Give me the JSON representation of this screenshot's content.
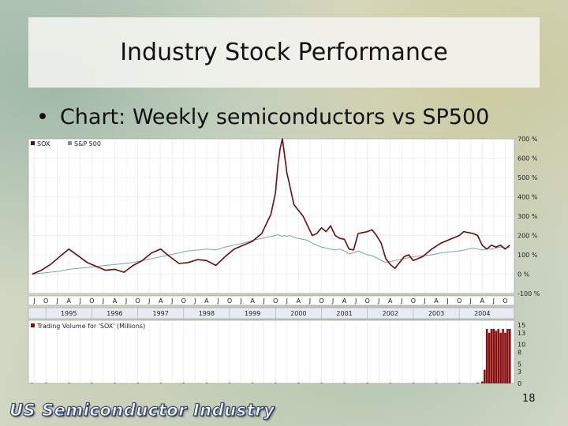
{
  "slide": {
    "title": "Industry Stock Performance",
    "bullet": "Chart: Weekly semiconductors vs SP500",
    "page_number": "18",
    "footer_brand": "US Semiconductor Industry"
  },
  "colors": {
    "sox": "#6b0a0a",
    "sp500": "#6f9aa0",
    "volume": "#8a1010",
    "grid": "#c8c8c8"
  },
  "chart_data": [
    {
      "type": "line",
      "title": "",
      "legend": [
        "SOX",
        "S&P 500"
      ],
      "legend_position": "top-left",
      "y_axis_side": "right",
      "y_ticks": [
        "700 %",
        "600 %",
        "500 %",
        "400 %",
        "300 %",
        "200 %",
        "100 %",
        "0 %",
        "-100 %"
      ],
      "ylim": [
        -100,
        700
      ],
      "grid": true,
      "month_ticks": [
        "J",
        "O",
        "J",
        "A",
        "J",
        "O",
        "J",
        "A",
        "J",
        "O",
        "J",
        "A",
        "J",
        "O",
        "J",
        "A",
        "J",
        "O",
        "J",
        "A",
        "J",
        "O",
        "J",
        "A",
        "J",
        "O",
        "J",
        "A",
        "J",
        "O",
        "J",
        "A",
        "J",
        "O",
        "J",
        "A",
        "J",
        "O",
        "J",
        "A",
        "J",
        "O",
        "J"
      ],
      "year_labels": [
        "1995",
        "1996",
        "1997",
        "1998",
        "1999",
        "2000",
        "2001",
        "2002",
        "2003",
        "2004"
      ],
      "x": [
        1994.7,
        1994.9,
        1995.1,
        1995.3,
        1995.5,
        1995.7,
        1995.9,
        1996.1,
        1996.3,
        1996.5,
        1996.7,
        1996.9,
        1997.1,
        1997.3,
        1997.5,
        1997.7,
        1997.9,
        1998.1,
        1998.3,
        1998.5,
        1998.7,
        1998.9,
        1999.1,
        1999.3,
        1999.5,
        1999.7,
        1999.9,
        2000.0,
        2000.05,
        2000.1,
        2000.15,
        2000.2,
        2000.25,
        2000.3,
        2000.4,
        2000.5,
        2000.6,
        2000.7,
        2000.8,
        2000.9,
        2001.0,
        2001.1,
        2001.2,
        2001.3,
        2001.4,
        2001.5,
        2001.6,
        2001.7,
        2001.8,
        2001.9,
        2002.0,
        2002.1,
        2002.2,
        2002.3,
        2002.4,
        2002.5,
        2002.6,
        2002.7,
        2002.8,
        2002.9,
        2003.0,
        2003.2,
        2003.4,
        2003.6,
        2003.8,
        2004.0,
        2004.1,
        2004.2,
        2004.3,
        2004.4,
        2004.5,
        2004.6,
        2004.7,
        2004.8,
        2004.9,
        2005.0,
        2005.1
      ],
      "series": [
        {
          "name": "SOX",
          "values": [
            0,
            20,
            50,
            90,
            130,
            95,
            60,
            40,
            20,
            25,
            10,
            45,
            70,
            110,
            130,
            90,
            55,
            60,
            75,
            70,
            45,
            90,
            130,
            150,
            170,
            210,
            310,
            420,
            560,
            650,
            700,
            610,
            520,
            470,
            360,
            330,
            300,
            250,
            200,
            210,
            240,
            220,
            250,
            200,
            185,
            180,
            130,
            125,
            210,
            215,
            220,
            230,
            200,
            160,
            80,
            50,
            30,
            60,
            90,
            100,
            70,
            90,
            130,
            160,
            180,
            200,
            220,
            215,
            210,
            200,
            150,
            130,
            150,
            140,
            150,
            130,
            150
          ]
        },
        {
          "name": "S&P 500",
          "values": [
            0,
            5,
            10,
            15,
            25,
            30,
            35,
            40,
            45,
            50,
            55,
            60,
            70,
            80,
            90,
            100,
            110,
            120,
            125,
            130,
            125,
            140,
            150,
            160,
            175,
            185,
            195,
            200,
            205,
            200,
            195,
            200,
            195,
            200,
            190,
            185,
            180,
            175,
            160,
            150,
            140,
            135,
            130,
            125,
            130,
            120,
            105,
            110,
            120,
            110,
            100,
            95,
            85,
            70,
            60,
            65,
            70,
            75,
            80,
            85,
            90,
            95,
            100,
            110,
            115,
            120,
            125,
            130,
            135,
            130,
            125,
            130,
            130,
            135,
            140,
            135,
            140
          ]
        }
      ]
    },
    {
      "type": "bar",
      "title": "Trading Volume for 'SOX' (Millions)",
      "y_ticks": [
        "15",
        "13",
        "10",
        "8",
        "5",
        "3",
        "0"
      ],
      "ylim": [
        0,
        15
      ],
      "series": [
        {
          "name": "Trading Volume for 'SOX' (Millions)",
          "x": [
            1994.7,
            1995.0,
            1995.5,
            1996.0,
            1996.5,
            1997.0,
            1997.5,
            1998.0,
            1998.5,
            1999.0,
            1999.5,
            2000.0,
            2000.5,
            2001.0,
            2001.5,
            2002.0,
            2002.5,
            2003.0,
            2003.5,
            2004.0,
            2004.4,
            2004.5,
            2004.55,
            2004.6,
            2004.65,
            2004.7,
            2004.75,
            2004.8,
            2004.85,
            2004.9,
            2004.95,
            2005.0,
            2005.05,
            2005.1
          ],
          "values": [
            0.1,
            0.1,
            0.1,
            0.1,
            0.1,
            0.1,
            0.1,
            0.1,
            0.1,
            0.1,
            0.1,
            0.1,
            0.1,
            0.1,
            0.1,
            0.1,
            0.1,
            0.1,
            0.1,
            0.1,
            0.2,
            0.5,
            3.5,
            14,
            13,
            14,
            14,
            13.5,
            14,
            13,
            14,
            13,
            14,
            14
          ]
        }
      ]
    }
  ]
}
